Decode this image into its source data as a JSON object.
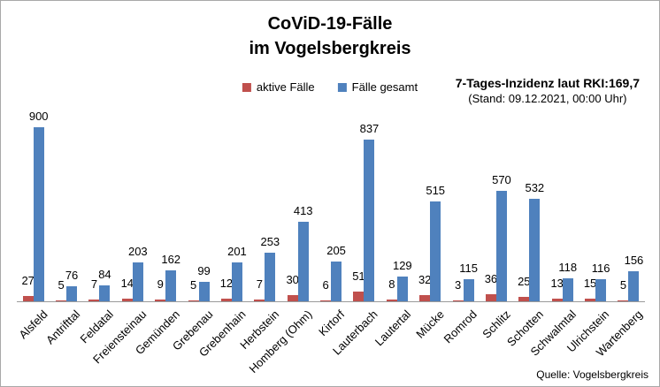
{
  "title": {
    "line1": "CoViD-19-Fälle",
    "line2": "im Vogelsbergkreis"
  },
  "legend": {
    "items": [
      {
        "label": "aktive Fälle",
        "color": "#c0504d"
      },
      {
        "label": "Fälle gesamt",
        "color": "#4f81bd"
      }
    ]
  },
  "info": {
    "line1": "7-Tages-Inzidenz laut RKI:169,7",
    "line2": "(Stand: 09.12.2021, 00:00 Uhr)"
  },
  "source": "Quelle: Vogelsbergkreis",
  "colors": {
    "active_cases": "#c0504d",
    "total_cases": "#4f81bd",
    "axis_line": "#9b9b9b",
    "frame_border": "#a8a8a8"
  },
  "chart_data": {
    "type": "bar",
    "title": "CoViD-19-Fälle im Vogelsbergkreis",
    "xlabel": "",
    "ylabel": "",
    "ylim": [
      0,
      900
    ],
    "grid": false,
    "legend_position": "top",
    "value_labels": true,
    "categories": [
      "Alsfeld",
      "Antrifttal",
      "Feldatal",
      "Freiensteinau",
      "Gemünden",
      "Grebenau",
      "Grebenhain",
      "Herbstein",
      "Homberg (Ohm)",
      "Kirtorf",
      "Lauterbach",
      "Lautertal",
      "Mücke",
      "Romrod",
      "Schlitz",
      "Schotten",
      "Schwalmtal",
      "Ulrichstein",
      "Wartenberg"
    ],
    "series": [
      {
        "name": "aktive Fälle",
        "color": "#c0504d",
        "values": [
          27,
          5,
          7,
          14,
          9,
          5,
          12,
          7,
          30,
          6,
          51,
          8,
          32,
          3,
          36,
          25,
          13,
          15,
          5
        ]
      },
      {
        "name": "Fälle gesamt",
        "color": "#4f81bd",
        "values": [
          900,
          76,
          84,
          203,
          162,
          99,
          201,
          253,
          413,
          205,
          837,
          129,
          515,
          115,
          570,
          532,
          118,
          116,
          156
        ]
      }
    ]
  }
}
